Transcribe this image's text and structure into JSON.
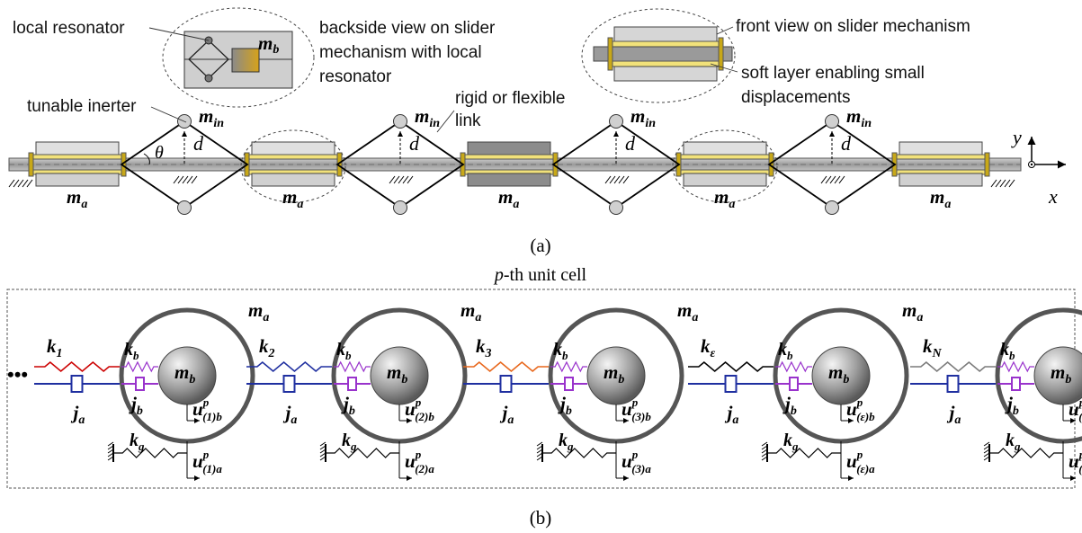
{
  "part_a": {
    "caption": "(a)",
    "annotations": {
      "local_resonator": "local resonator",
      "backside_view": [
        "backside view on slider",
        "mechanism with local",
        "resonator"
      ],
      "front_view": "front view on slider mechanism",
      "soft_layer": [
        "soft layer enabling small",
        "displacements"
      ],
      "tunable_inerter": "tunable inerter",
      "rigid_link": [
        "rigid or flexible",
        "link"
      ]
    },
    "symbols": {
      "m_b": "m",
      "m_b_sub": "b",
      "m_in": "m",
      "m_in_sub": "in",
      "m_a": "m",
      "m_a_sub": "a",
      "theta": "θ",
      "d": "d"
    },
    "axes": {
      "y": "y",
      "x": "x"
    }
  },
  "part_b": {
    "caption": "(b)",
    "title_var": "p",
    "title_text": "-th unit cell",
    "ellipsis": "•••",
    "cells": [
      {
        "k": "k",
        "k_sub": "1",
        "u_b": "(1)b",
        "u_a": "(1)a",
        "spring_color": "#cc0000"
      },
      {
        "k": "k",
        "k_sub": "2",
        "u_b": "(2)b",
        "u_a": "(2)a",
        "spring_color": "#1f2fa0"
      },
      {
        "k": "k",
        "k_sub": "3",
        "u_b": "(3)b",
        "u_a": "(3)a",
        "spring_color": "#e8661a"
      },
      {
        "k": "k",
        "k_sub": "ε",
        "u_b": "(ε)b",
        "u_a": "(ε)a",
        "spring_color": "#000000"
      },
      {
        "k": "k",
        "k_sub": "N",
        "u_b": "(N)b",
        "u_a": "(N)a",
        "spring_color": "#7a7a7a"
      }
    ],
    "labels": {
      "m_a": "m",
      "m_a_sub": "a",
      "m_b": "m",
      "m_b_sub": "b",
      "k_b": "k",
      "k_b_sub": "b",
      "j_a": "j",
      "j_a_sub": "a",
      "j_b": "j",
      "j_b_sub": "b",
      "k_g": "k",
      "k_g_sub": "g",
      "u": "u",
      "u_sup": "p"
    }
  },
  "colors": {
    "damper_a": "#1f2fa0",
    "kb_spring": "#9933cc",
    "rail": "#9a9a9a",
    "soft_layer": "#f2e27a",
    "slider_light": "#d6d6d6",
    "slider_dark": "#8c8c8c"
  }
}
